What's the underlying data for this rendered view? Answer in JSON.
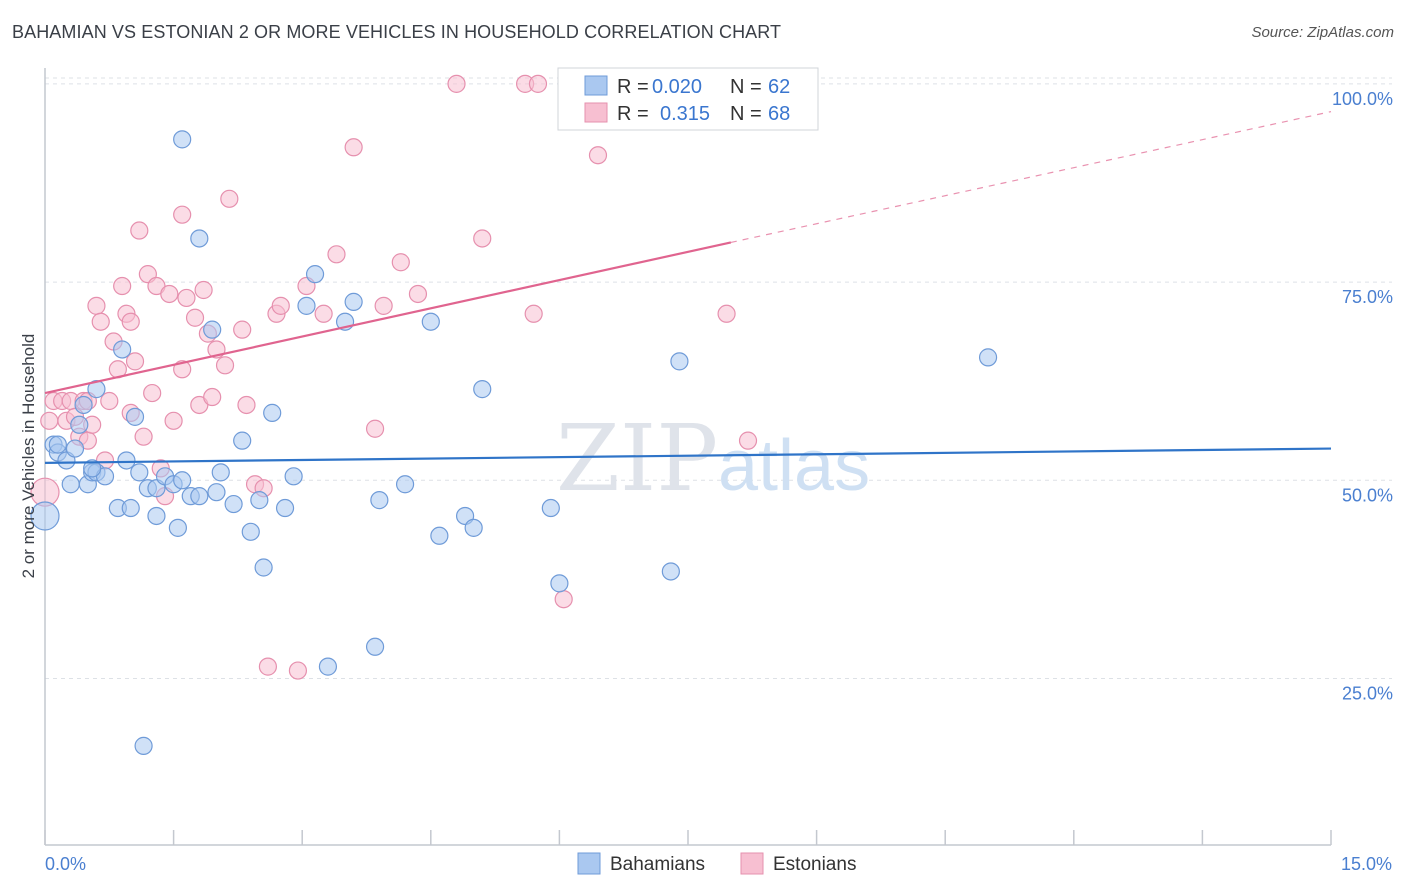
{
  "title": "BAHAMIAN VS ESTONIAN 2 OR MORE VEHICLES IN HOUSEHOLD CORRELATION CHART",
  "source": "Source: ZipAtlas.com",
  "watermark": {
    "zip": "ZIP",
    "atlas": "atlas"
  },
  "legend": {
    "rows": [
      {
        "r_label": "R =",
        "r_value": "0.020",
        "n_label": "N =",
        "n_value": "62"
      },
      {
        "r_label": "R =",
        "r_value": "0.315",
        "n_label": "N =",
        "n_value": "68"
      }
    ]
  },
  "bottom_legend": [
    "Bahamians",
    "Estonians"
  ],
  "colors": {
    "blue_fill": "#aac8f0",
    "blue_stroke": "#6f9bd8",
    "blue_line": "#2f74c8",
    "pink_fill": "#f7bfd1",
    "pink_stroke": "#e690ae",
    "pink_line": "#e0648f",
    "grid": "#dde1e6",
    "tick_text": "#4a7fd0"
  },
  "chart_data": {
    "type": "scatter",
    "title": "BAHAMIAN VS ESTONIAN 2 OR MORE VEHICLES IN HOUSEHOLD CORRELATION CHART",
    "xlabel": "",
    "ylabel": "2 or more Vehicles in Household",
    "xlim": [
      0,
      15
    ],
    "ylim": [
      4,
      102
    ],
    "x_ticks": [
      "0.0%",
      "15.0%"
    ],
    "y_ticks": [
      "25.0%",
      "50.0%",
      "75.0%",
      "100.0%"
    ],
    "y_tick_values": [
      25,
      50,
      75,
      100
    ],
    "grid": true,
    "legend_position": "top-center",
    "series": [
      {
        "name": "Bahamians",
        "r": 0.02,
        "n": 62,
        "trend": {
          "x0": 0,
          "y0": 52.2,
          "x1": 15,
          "y1": 54.0
        },
        "points": [
          [
            0.0,
            45.5
          ],
          [
            0.1,
            54.5
          ],
          [
            0.15,
            53.5
          ],
          [
            0.25,
            52.5
          ],
          [
            0.3,
            49.5
          ],
          [
            0.35,
            54.0
          ],
          [
            0.4,
            57.0
          ],
          [
            0.45,
            59.5
          ],
          [
            0.5,
            49.5
          ],
          [
            0.55,
            51.0
          ],
          [
            0.6,
            61.5
          ],
          [
            0.6,
            51.0
          ],
          [
            0.7,
            50.5
          ],
          [
            0.85,
            46.5
          ],
          [
            0.9,
            66.5
          ],
          [
            0.95,
            52.5
          ],
          [
            1.0,
            46.5
          ],
          [
            1.05,
            58.0
          ],
          [
            1.1,
            51.0
          ],
          [
            1.2,
            49.0
          ],
          [
            1.3,
            49.0
          ],
          [
            1.3,
            45.5
          ],
          [
            1.4,
            50.5
          ],
          [
            1.5,
            49.5
          ],
          [
            1.55,
            44.0
          ],
          [
            1.6,
            50.0
          ],
          [
            1.7,
            48.0
          ],
          [
            1.8,
            48.0
          ],
          [
            1.95,
            69.0
          ],
          [
            2.0,
            48.5
          ],
          [
            2.05,
            51.0
          ],
          [
            2.2,
            47.0
          ],
          [
            2.3,
            55.0
          ],
          [
            2.4,
            43.5
          ],
          [
            2.5,
            47.5
          ],
          [
            2.55,
            39.0
          ],
          [
            2.65,
            58.5
          ],
          [
            2.8,
            46.5
          ],
          [
            2.9,
            50.5
          ],
          [
            3.05,
            72.0
          ],
          [
            3.15,
            76.0
          ],
          [
            3.3,
            26.5
          ],
          [
            3.5,
            70.0
          ],
          [
            3.6,
            72.5
          ],
          [
            3.85,
            29.0
          ],
          [
            3.9,
            47.5
          ],
          [
            4.2,
            49.5
          ],
          [
            4.5,
            70.0
          ],
          [
            4.6,
            43.0
          ],
          [
            4.9,
            45.5
          ],
          [
            5.0,
            44.0
          ],
          [
            5.1,
            61.5
          ],
          [
            5.9,
            46.5
          ],
          [
            6.0,
            37.0
          ],
          [
            7.3,
            38.5
          ],
          [
            7.4,
            65.0
          ],
          [
            11.0,
            65.5
          ],
          [
            1.15,
            16.5
          ],
          [
            1.6,
            93.0
          ],
          [
            1.8,
            80.5
          ],
          [
            0.15,
            54.5
          ],
          [
            0.55,
            51.5
          ]
        ]
      },
      {
        "name": "Estonians",
        "r": 0.315,
        "n": 68,
        "trend": {
          "x0": 0,
          "y0": 61.0,
          "x1": 8.0,
          "y1": 80.0,
          "dash_to_x": 15,
          "dash_to_y": 96.5
        },
        "points": [
          [
            0.0,
            48.5
          ],
          [
            0.05,
            57.5
          ],
          [
            0.1,
            60.0
          ],
          [
            0.2,
            60.0
          ],
          [
            0.25,
            57.5
          ],
          [
            0.3,
            60.0
          ],
          [
            0.35,
            58.0
          ],
          [
            0.4,
            55.5
          ],
          [
            0.45,
            60.0
          ],
          [
            0.5,
            60.0
          ],
          [
            0.5,
            55.0
          ],
          [
            0.55,
            57.0
          ],
          [
            0.6,
            72.0
          ],
          [
            0.65,
            70.0
          ],
          [
            0.7,
            52.5
          ],
          [
            0.75,
            60.0
          ],
          [
            0.8,
            67.5
          ],
          [
            0.85,
            64.0
          ],
          [
            0.9,
            74.5
          ],
          [
            0.95,
            71.0
          ],
          [
            1.0,
            58.5
          ],
          [
            1.0,
            70.0
          ],
          [
            1.05,
            65.0
          ],
          [
            1.1,
            81.5
          ],
          [
            1.2,
            76.0
          ],
          [
            1.15,
            55.5
          ],
          [
            1.25,
            61.0
          ],
          [
            1.3,
            74.5
          ],
          [
            1.35,
            51.5
          ],
          [
            1.4,
            48.0
          ],
          [
            1.45,
            73.5
          ],
          [
            1.5,
            57.5
          ],
          [
            1.6,
            83.5
          ],
          [
            1.6,
            64.0
          ],
          [
            1.65,
            73.0
          ],
          [
            1.75,
            70.5
          ],
          [
            1.8,
            59.5
          ],
          [
            1.85,
            74.0
          ],
          [
            1.9,
            68.5
          ],
          [
            1.95,
            60.5
          ],
          [
            2.0,
            66.5
          ],
          [
            2.1,
            64.5
          ],
          [
            2.15,
            85.5
          ],
          [
            2.3,
            69.0
          ],
          [
            2.35,
            59.5
          ],
          [
            2.45,
            49.5
          ],
          [
            2.55,
            49.0
          ],
          [
            2.6,
            26.5
          ],
          [
            2.7,
            71.0
          ],
          [
            2.75,
            72.0
          ],
          [
            2.95,
            26.0
          ],
          [
            3.05,
            74.5
          ],
          [
            3.25,
            71.0
          ],
          [
            3.4,
            78.5
          ],
          [
            3.6,
            92.0
          ],
          [
            3.85,
            56.5
          ],
          [
            3.95,
            72.0
          ],
          [
            4.15,
            77.5
          ],
          [
            4.35,
            73.5
          ],
          [
            4.8,
            100.0
          ],
          [
            5.1,
            80.5
          ],
          [
            5.6,
            100.0
          ],
          [
            5.7,
            71.0
          ],
          [
            5.75,
            100.0
          ],
          [
            6.05,
            35.0
          ],
          [
            6.45,
            91.0
          ],
          [
            7.95,
            71.0
          ],
          [
            8.2,
            55.0
          ]
        ]
      }
    ]
  }
}
